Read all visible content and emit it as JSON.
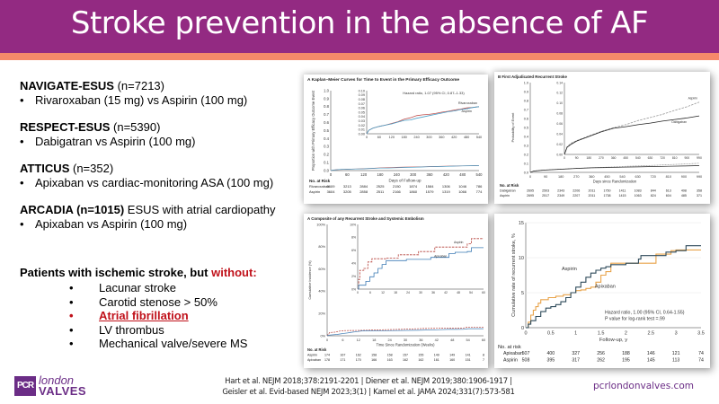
{
  "header": {
    "title": "Stroke prevention in the absence of AF",
    "bg_color": "#932a82",
    "accent_color": "#f5896a"
  },
  "trials": [
    {
      "name": "NAVIGATE-ESUS",
      "n": " (n=7213)",
      "extra": "",
      "bullet": "Rivaroxaban (15 mg) vs Aspirin (100 mg)"
    },
    {
      "name": "RESPECT-ESUS",
      "n": " (n=5390)",
      "extra": "",
      "bullet": "Dabigatran vs Aspirin (100 mg)"
    },
    {
      "name": "ATTICUS",
      "n": " (n=352)",
      "extra": "",
      "bullet": "Apixaban vs cardiac-monitoring ASA (100 mg)"
    },
    {
      "name": "ARCADIA (n=1015)",
      "n": "",
      "extra": " ESUS with atrial cardiopathy",
      "bullet": "Apixaban vs Aspirin (100 mg)"
    }
  ],
  "criteria": {
    "heading": "Patients with ischemic stroke, but ",
    "heading_red": "without:",
    "items": [
      {
        "text": "Lacunar stroke",
        "highlight": false
      },
      {
        "text": "Carotid stenose > 50%",
        "highlight": false
      },
      {
        "text": "Atrial fibrillation",
        "highlight": true
      },
      {
        "text": "LV thrombus",
        "highlight": false
      },
      {
        "text": "Mechanical valve/severe MS",
        "highlight": false
      }
    ],
    "bullet": "•"
  },
  "footer": {
    "logo_box": "PCR",
    "logo_top": "london",
    "logo_bottom": "VALVES",
    "refs_line1": "Hart et al. NEJM 2018;378:2191-2201 | Diener et al. NEJM 2019;380:1906-1917 |",
    "refs_line2": "Geisler et al. Evid-based NEJM 2023;3(1) | Kamel et al. JAMA 2024;331(7):573-581",
    "website": "pcrlondonvalves.com"
  },
  "chart_data": [
    {
      "type": "line",
      "panel_label": "A",
      "title": "Kaplan–Meier Curves for Time to Event in the Primary Efficacy Outcome",
      "annotation": "Hazard ratio, 1.07 (95% CI, 0.87–1.33)",
      "xlabel": "Days of Follow-up",
      "ylabel": "Proportion with Primary Efficacy Outcome Event",
      "x_ticks": [
        "0",
        "60",
        "120",
        "180",
        "240",
        "300",
        "360",
        "420",
        "480",
        "540"
      ],
      "y_ticks": [
        "0.0",
        "0.1",
        "0.2",
        "0.3",
        "0.4",
        "0.5",
        "0.6",
        "0.7",
        "0.8",
        "0.9",
        "1.0"
      ],
      "inset_y_ticks": [
        "0.00",
        "0.01",
        "0.02",
        "0.03",
        "0.04",
        "0.05",
        "0.06",
        "0.07",
        "0.08",
        "0.09",
        "0.10"
      ],
      "xlim": [
        0,
        540
      ],
      "ylim": [
        0,
        0.1
      ],
      "series": [
        {
          "name": "Rivaroxaban",
          "color": "#c0504d",
          "x": [
            0,
            10,
            30,
            60,
            90,
            120,
            150,
            180,
            210,
            240,
            270,
            300,
            330,
            360,
            390,
            420,
            450,
            480,
            510,
            540
          ],
          "y": [
            0,
            0.008,
            0.013,
            0.017,
            0.02,
            0.024,
            0.028,
            0.034,
            0.037,
            0.042,
            0.044,
            0.045,
            0.047,
            0.05,
            0.052,
            0.055,
            0.057,
            0.06,
            0.061,
            0.063
          ]
        },
        {
          "name": "Aspirin",
          "color": "#4a9fc7",
          "x": [
            0,
            10,
            30,
            60,
            90,
            120,
            150,
            180,
            210,
            240,
            270,
            300,
            330,
            360,
            390,
            420,
            450,
            480,
            510,
            540
          ],
          "y": [
            0,
            0.008,
            0.013,
            0.017,
            0.02,
            0.023,
            0.027,
            0.031,
            0.032,
            0.036,
            0.039,
            0.042,
            0.045,
            0.048,
            0.051,
            0.053,
            0.056,
            0.058,
            0.061,
            0.063
          ]
        }
      ],
      "risk_table": {
        "label": "No. at Risk",
        "rows": [
          {
            "name": "Rivaroxaban",
            "values": [
              "3609",
              "3213",
              "2884",
              "2525",
              "2150",
              "1874",
              "1584",
              "1306",
              "1046",
              "786"
            ]
          },
          {
            "name": "Aspirin",
            "values": [
              "3604",
              "3205",
              "2858",
              "2511",
              "2166",
              "1860",
              "1579",
              "1319",
              "1066",
              "774"
            ]
          }
        ]
      }
    },
    {
      "type": "line",
      "panel_label": "B",
      "title": "First Adjudicated Recurrent Stroke",
      "xlabel": "Days since Randomization",
      "ylabel": "Probability of Event",
      "x_ticks": [
        "0",
        "90",
        "180",
        "270",
        "360",
        "450",
        "540",
        "630",
        "720",
        "810",
        "900",
        "990"
      ],
      "y_ticks": [
        "0.0",
        "0.1",
        "0.2",
        "0.3",
        "0.4",
        "0.5",
        "0.6",
        "0.7",
        "0.8",
        "0.9",
        "1.0"
      ],
      "inset_y_ticks": [
        "0.00",
        "0.02",
        "0.04",
        "0.06",
        "0.08",
        "0.10",
        "0.12",
        "0.14"
      ],
      "xlim": [
        0,
        990
      ],
      "ylim": [
        0,
        0.14
      ],
      "series": [
        {
          "name": "Aspirin",
          "color": "#999999",
          "dashed": true,
          "x": [
            0,
            20,
            50,
            90,
            180,
            270,
            360,
            450,
            540,
            630,
            720,
            810,
            900,
            990
          ],
          "y": [
            0,
            0.015,
            0.022,
            0.027,
            0.036,
            0.045,
            0.052,
            0.058,
            0.066,
            0.072,
            0.078,
            0.086,
            0.093,
            0.102
          ]
        },
        {
          "name": "Dabigatran",
          "color": "#222222",
          "x": [
            0,
            20,
            50,
            90,
            180,
            270,
            360,
            450,
            540,
            630,
            720,
            810,
            900,
            990
          ],
          "y": [
            0,
            0.014,
            0.02,
            0.026,
            0.035,
            0.044,
            0.051,
            0.054,
            0.058,
            0.061,
            0.065,
            0.068,
            0.071,
            0.075
          ]
        }
      ],
      "risk_table": {
        "label": "No. at Risk",
        "rows": [
          {
            "name": "Dabigatran",
            "values": [
              "2695",
              "2503",
              "2343",
              "2206",
              "2011",
              "1750",
              "1411",
              "1083",
              "844",
              "613",
              "498",
              "358"
            ]
          },
          {
            "name": "Aspirin",
            "values": [
              "2695",
              "2517",
              "2349",
              "2207",
              "2011",
              "1738",
              "1415",
              "1063",
              "824",
              "604",
              "485",
              "371"
            ]
          }
        ]
      }
    },
    {
      "type": "line",
      "panel_label": "A",
      "title": "Composite of any Recurrent Stroke and Systemic Embolism",
      "xlabel": "Time Since Randomization (Weeks)",
      "ylabel": "Cumulative Incidence (%)",
      "x_ticks": [
        "0",
        "6",
        "12",
        "18",
        "24",
        "30",
        "36",
        "42",
        "48",
        "54",
        "60"
      ],
      "y_ticks": [
        "0%",
        "20%",
        "40%",
        "60%",
        "80%",
        "100%"
      ],
      "inset_y_ticks": [
        "0%",
        "2%",
        "4%",
        "6%",
        "8%",
        "10%"
      ],
      "xlim": [
        0,
        62
      ],
      "ylim": [
        0,
        10
      ],
      "series": [
        {
          "name": "Aspirin",
          "color": "#b5413a",
          "dashed": true,
          "x": [
            0,
            0.5,
            1,
            3,
            5,
            7,
            14,
            20,
            30,
            38,
            54,
            56,
            62
          ],
          "y": [
            0,
            1.5,
            2.9,
            3.2,
            4.2,
            4.7,
            4.8,
            5.3,
            5.8,
            6.5,
            7.0,
            7.8,
            7.8
          ]
        },
        {
          "name": "Apixaban",
          "color": "#3f7cb5",
          "x": [
            0,
            0.5,
            4,
            6,
            8,
            10,
            12,
            14,
            24,
            36,
            45,
            48,
            54,
            56,
            62
          ],
          "y": [
            0,
            0.6,
            1.2,
            1.9,
            2.5,
            3.2,
            3.8,
            4.4,
            4.6,
            4.9,
            5.5,
            5.7,
            5.8,
            6.4,
            6.4
          ]
        }
      ],
      "risk_table": {
        "label": "No. at Risk",
        "rows": [
          {
            "name": "Aspirin",
            "values": [
              "174",
              "167",
              "162",
              "158",
              "158",
              "157",
              "155",
              "149",
              "149",
              "141",
              "8"
            ]
          },
          {
            "name": "Apixaban",
            "values": [
              "178",
              "171",
              "170",
              "166",
              "163",
              "162",
              "162",
              "161",
              "160",
              "151",
              "7"
            ]
          }
        ]
      }
    },
    {
      "type": "line",
      "title": "",
      "annotation_line1": "Hazard ratio, 1.00 (95% CI, 0.64-1.55)",
      "annotation_line2": "P value for log-rank test =.99",
      "xlabel": "Follow-up, y",
      "ylabel": "Cumulative rate of recurrent stroke, %",
      "x_ticks": [
        "0",
        "0.5",
        "1",
        "1.5",
        "2",
        "2.5",
        "3",
        "3.5"
      ],
      "y_ticks": [
        "0",
        "5",
        "10",
        "15"
      ],
      "xlim": [
        0,
        3.5
      ],
      "ylim": [
        0,
        15
      ],
      "series": [
        {
          "name": "Apixaban",
          "color": "#e8a34a",
          "x": [
            0,
            0.05,
            0.1,
            0.15,
            0.2,
            0.25,
            0.3,
            0.45,
            0.6,
            0.75,
            0.9,
            1.0,
            1.1,
            1.2,
            1.3,
            1.4,
            1.5,
            1.6,
            1.7,
            2.0,
            2.4,
            2.6,
            2.8,
            2.9,
            3.0,
            3.5
          ],
          "y": [
            0,
            0.8,
            1.8,
            2.5,
            3.0,
            3.5,
            4.0,
            4.3,
            4.5,
            4.7,
            5.0,
            5.3,
            5.4,
            5.6,
            5.8,
            6.5,
            7.5,
            8.0,
            9.2,
            9.2,
            9.2,
            10.5,
            10.5,
            11.0,
            11.1,
            11.1
          ]
        },
        {
          "name": "Aspirin",
          "color": "#2e4a5a",
          "x": [
            0,
            0.05,
            0.1,
            0.2,
            0.3,
            0.4,
            0.5,
            0.6,
            0.7,
            0.8,
            0.9,
            1.0,
            1.1,
            1.2,
            1.3,
            1.4,
            1.5,
            1.6,
            1.7,
            2.0,
            2.25,
            2.3,
            2.6,
            2.8,
            3.0,
            3.2,
            3.5
          ],
          "y": [
            0,
            0.5,
            1.0,
            1.6,
            2.3,
            2.8,
            3.0,
            3.3,
            3.7,
            4.3,
            5.0,
            5.8,
            6.5,
            7.2,
            7.8,
            8.2,
            8.5,
            8.7,
            9.0,
            9.2,
            9.8,
            10.3,
            10.3,
            10.8,
            11.0,
            11.7,
            11.7
          ]
        }
      ],
      "risk_table": {
        "label": "No. at risk",
        "rows": [
          {
            "name": "Apixaban",
            "values": [
              "507",
              "400",
              "327",
              "256",
              "188",
              "146",
              "121",
              "74"
            ]
          },
          {
            "name": "Aspirin",
            "values": [
              "508",
              "395",
              "317",
              "262",
              "195",
              "145",
              "113",
              "74"
            ]
          }
        ]
      }
    }
  ]
}
